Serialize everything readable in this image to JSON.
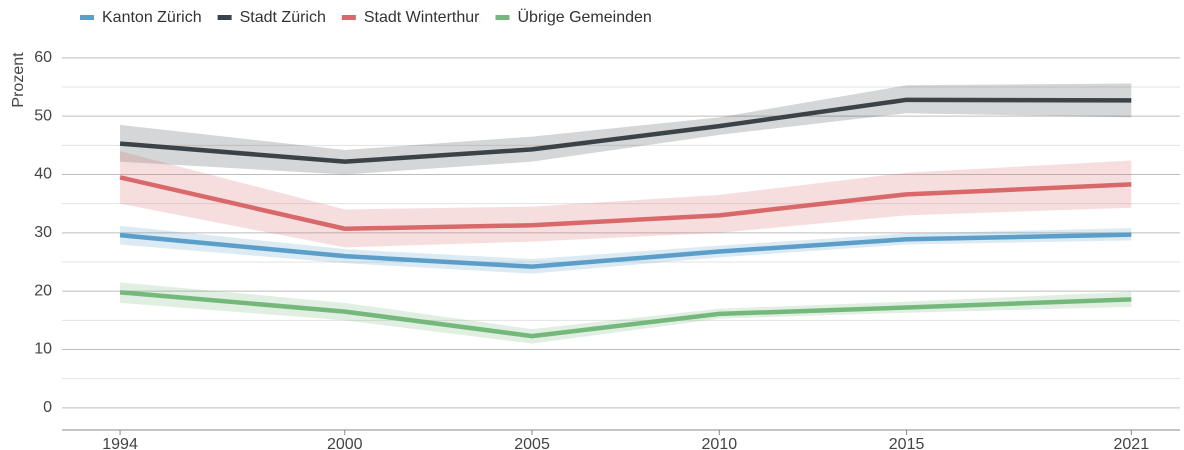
{
  "chart_data": {
    "type": "line",
    "y_label": "Prozent",
    "x": [
      1994,
      2000,
      2005,
      2010,
      2015,
      2021
    ],
    "xlim": [
      1992.45,
      2022.3
    ],
    "xticks": [
      1994,
      2000,
      2005,
      2010,
      2015,
      2021
    ],
    "ylim": [
      -3.8,
      61
    ],
    "yticks": [
      0,
      10,
      20,
      30,
      40,
      50,
      60
    ],
    "minor_yticks": [
      5,
      15,
      25,
      35,
      45,
      55
    ],
    "grid": true,
    "series": [
      {
        "name": "Kanton Zürich",
        "color": "#5b9ec9",
        "values": [
          29.6,
          26,
          24.2,
          26.8,
          28.9,
          29.7
        ],
        "lower": [
          28,
          24.8,
          23,
          25.8,
          28,
          28.7
        ],
        "upper": [
          31.2,
          27.2,
          25.5,
          27.8,
          29.9,
          30.8
        ]
      },
      {
        "name": "Stadt Zürich",
        "color": "#3c4348",
        "values": [
          45.3,
          42.2,
          44.3,
          48.3,
          52.8,
          52.7
        ],
        "lower": [
          42.2,
          40,
          42.2,
          46.8,
          50.5,
          49.8
        ],
        "upper": [
          48.5,
          44.2,
          46.5,
          49.8,
          55.3,
          55.6
        ]
      },
      {
        "name": "Stadt Winterthur",
        "color": "#d9686a",
        "values": [
          39.5,
          30.7,
          31.3,
          33,
          36.6,
          38.3
        ],
        "lower": [
          35,
          27.5,
          28.5,
          30,
          33,
          34.3
        ],
        "upper": [
          44,
          34,
          34.5,
          36.5,
          40.3,
          42.4
        ]
      },
      {
        "name": "Übrige Gemeinden",
        "color": "#74b87c",
        "values": [
          19.8,
          16.5,
          12.3,
          16.1,
          17.2,
          18.6
        ],
        "lower": [
          18,
          15,
          11,
          15.3,
          16.3,
          17.3
        ],
        "upper": [
          21.5,
          18,
          13.5,
          17,
          18.2,
          19.9
        ]
      }
    ]
  }
}
